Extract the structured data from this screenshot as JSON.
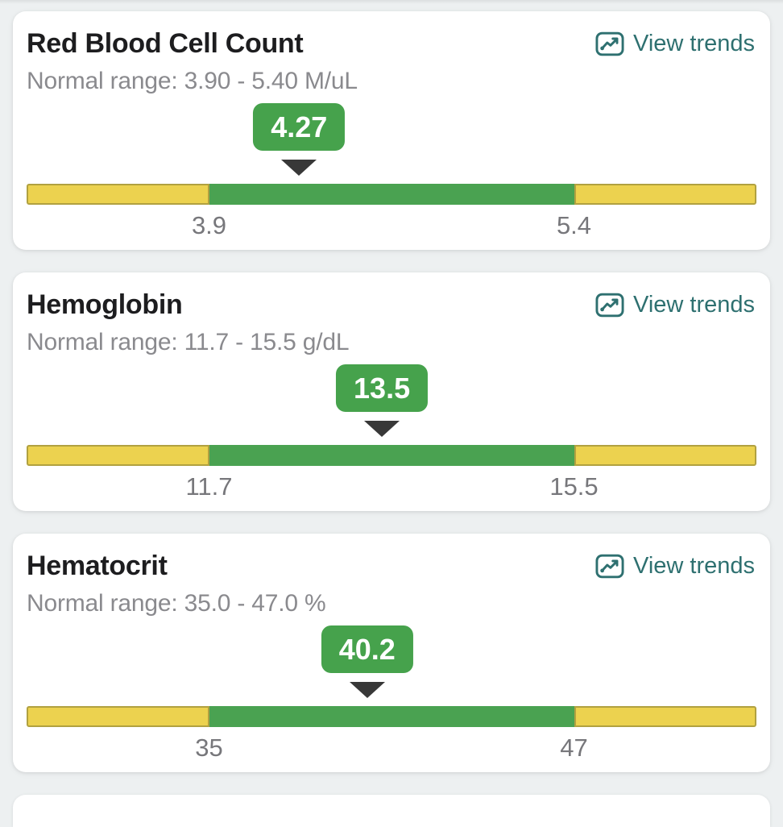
{
  "common": {
    "view_trends_label": "View trends"
  },
  "colors": {
    "page_background": "#edf0f1",
    "card_background": "#ffffff",
    "title_text": "#1d1d1f",
    "secondary_text": "#8a8a8e",
    "tick_text": "#77777b",
    "link_teal": "#2e7070",
    "badge_green": "#46a24c",
    "bar_green": "#4aa251",
    "bar_yellow": "#ecd24f",
    "bar_yellow_border": "#b1a140",
    "marker_triangle": "#383838"
  },
  "meter_layout": {
    "green_zone_start_percent": 25,
    "green_zone_end_percent": 75
  },
  "cards": [
    {
      "title": "Red Blood Cell Count",
      "range_label": "Normal range: 3.90 - 5.40 M/uL",
      "value_label": "4.27",
      "value": 4.27,
      "range_low": 3.9,
      "range_high": 5.4,
      "low_label": "3.9",
      "high_label": "5.4"
    },
    {
      "title": "Hemoglobin",
      "range_label": "Normal range: 11.7 - 15.5 g/dL",
      "value_label": "13.5",
      "value": 13.5,
      "range_low": 11.7,
      "range_high": 15.5,
      "low_label": "11.7",
      "high_label": "15.5"
    },
    {
      "title": "Hematocrit",
      "range_label": "Normal range: 35.0 - 47.0 %",
      "value_label": "40.2",
      "value": 40.2,
      "range_low": 35.0,
      "range_high": 47.0,
      "low_label": "35",
      "high_label": "47"
    }
  ]
}
